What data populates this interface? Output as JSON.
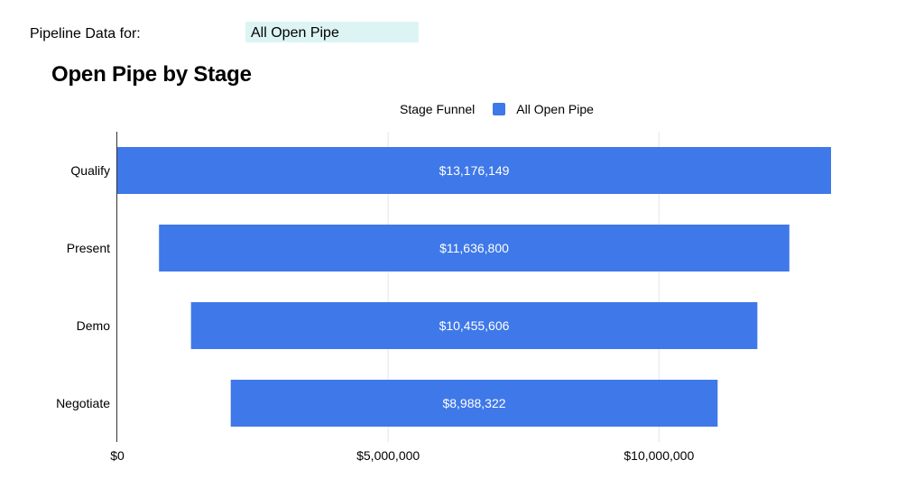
{
  "header": {
    "filter_label": "Pipeline Data for:",
    "filter_value": "All Open Pipe",
    "filter_cell_color": "#dcf4f4"
  },
  "chart_data": {
    "type": "bar",
    "orientation": "horizontal",
    "subtype": "funnel",
    "title": "Open Pipe by Stage",
    "legend_title": "Stage Funnel",
    "legend_position": "top",
    "categories": [
      "Qualify",
      "Present",
      "Demo",
      "Negotiate"
    ],
    "series": [
      {
        "name": "All Open Pipe",
        "color": "#3f78e8",
        "values": [
          13176149,
          11636800,
          10455606,
          8988322
        ],
        "labels": [
          "$13,176,149",
          "$11,636,800",
          "$10,455,606",
          "$8,988,322"
        ]
      }
    ],
    "xlim": [
      0,
      13176149
    ],
    "xticks": [
      0,
      5000000,
      10000000
    ],
    "xtick_labels": [
      "$0",
      "$5,000,000",
      "$10,000,000"
    ],
    "grid": true
  }
}
